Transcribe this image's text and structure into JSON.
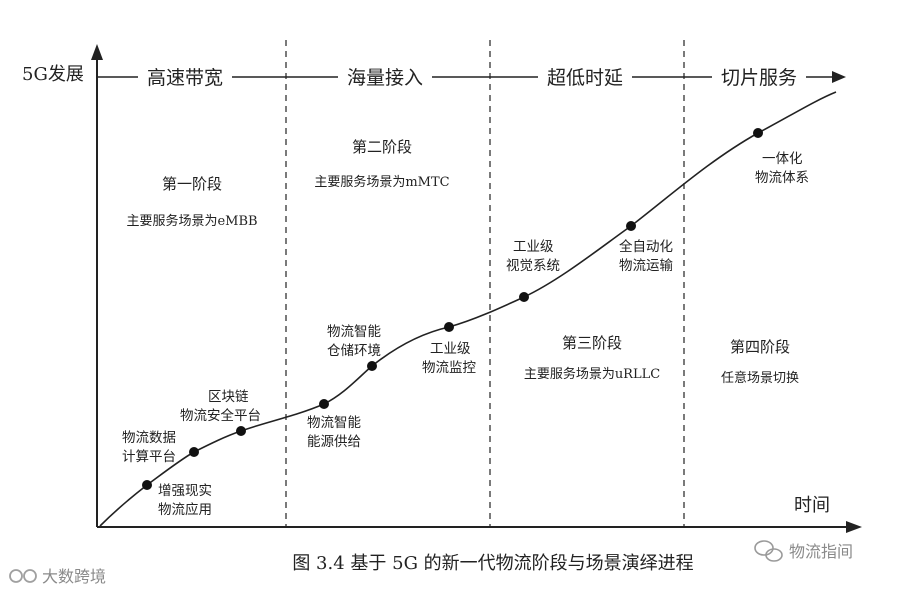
{
  "diagram": {
    "y_axis_label": "5G发展",
    "x_axis_label": "时间",
    "bands": [
      "高速带宽",
      "海量接入",
      "超低时延",
      "切片服务"
    ],
    "stages": [
      {
        "title": "第一阶段",
        "desc": "主要服务场景为eMBB"
      },
      {
        "title": "第二阶段",
        "desc": "主要服务场景为mMTC"
      },
      {
        "title": "第三阶段",
        "desc": "主要服务场景为uRLLC"
      },
      {
        "title": "第四阶段",
        "desc": "任意场景切换"
      }
    ],
    "milestones": [
      {
        "lines": [
          "增强现实",
          "物流应用"
        ]
      },
      {
        "lines": [
          "物流数据",
          "计算平台"
        ]
      },
      {
        "lines": [
          "区块链",
          "物流安全平台"
        ]
      },
      {
        "lines": [
          "物流智能",
          "能源供给"
        ]
      },
      {
        "lines": [
          "物流智能",
          "仓储环境"
        ]
      },
      {
        "lines": [
          "工业级",
          "物流监控"
        ]
      },
      {
        "lines": [
          "工业级",
          "视觉系统"
        ]
      },
      {
        "lines": [
          "全自动化",
          "物流运输"
        ]
      },
      {
        "lines": [
          "一体化",
          "物流体系"
        ]
      }
    ]
  },
  "caption": "图 3.4  基于 5G 的新一代物流阶段与场景演绎进程",
  "watermarks": {
    "left": "大数跨境",
    "right": "物流指间"
  }
}
